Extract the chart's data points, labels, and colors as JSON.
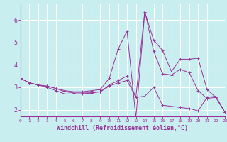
{
  "xlabel": "Windchill (Refroidissement éolien,°C)",
  "background_color": "#c8eef0",
  "grid_color": "#aadddd",
  "line_color": "#993399",
  "axis_color": "#993399",
  "xlim": [
    0,
    23
  ],
  "ylim": [
    1.7,
    6.7
  ],
  "yticks": [
    2,
    3,
    4,
    5,
    6
  ],
  "xticks": [
    0,
    1,
    2,
    3,
    4,
    5,
    6,
    7,
    8,
    9,
    10,
    11,
    12,
    13,
    14,
    15,
    16,
    17,
    18,
    19,
    20,
    21,
    22,
    23
  ],
  "series": [
    {
      "x": [
        0,
        1,
        2,
        3,
        4,
        5,
        6,
        7,
        8,
        9,
        10,
        11,
        12,
        13,
        14,
        15,
        16,
        17,
        18,
        19,
        20,
        21,
        22,
        23
      ],
      "y": [
        3.4,
        3.2,
        3.1,
        3.0,
        2.85,
        2.7,
        2.7,
        2.7,
        2.75,
        2.8,
        3.05,
        3.2,
        3.3,
        2.55,
        2.6,
        3.0,
        2.2,
        2.15,
        2.1,
        2.05,
        1.95,
        2.55,
        2.6,
        1.9
      ]
    },
    {
      "x": [
        0,
        1,
        2,
        3,
        4,
        5,
        6,
        7,
        8,
        9,
        10,
        11,
        12,
        13,
        14,
        15,
        16,
        17,
        18,
        19,
        20,
        21,
        22,
        23
      ],
      "y": [
        3.4,
        3.2,
        3.1,
        3.05,
        2.95,
        2.85,
        2.8,
        2.8,
        2.85,
        2.9,
        3.4,
        4.7,
        5.5,
        1.65,
        6.35,
        5.1,
        4.65,
        3.7,
        4.25,
        4.25,
        4.3,
        2.9,
        2.55,
        1.9
      ]
    },
    {
      "x": [
        0,
        1,
        2,
        3,
        4,
        5,
        6,
        7,
        8,
        9,
        10,
        11,
        12,
        13,
        14,
        15,
        16,
        17,
        18,
        19,
        20,
        21,
        22,
        23
      ],
      "y": [
        3.4,
        3.2,
        3.1,
        3.05,
        2.95,
        2.8,
        2.75,
        2.75,
        2.75,
        2.8,
        3.1,
        3.3,
        3.5,
        2.55,
        6.4,
        4.6,
        3.6,
        3.55,
        3.8,
        3.65,
        2.85,
        2.5,
        2.55,
        1.9
      ]
    }
  ]
}
